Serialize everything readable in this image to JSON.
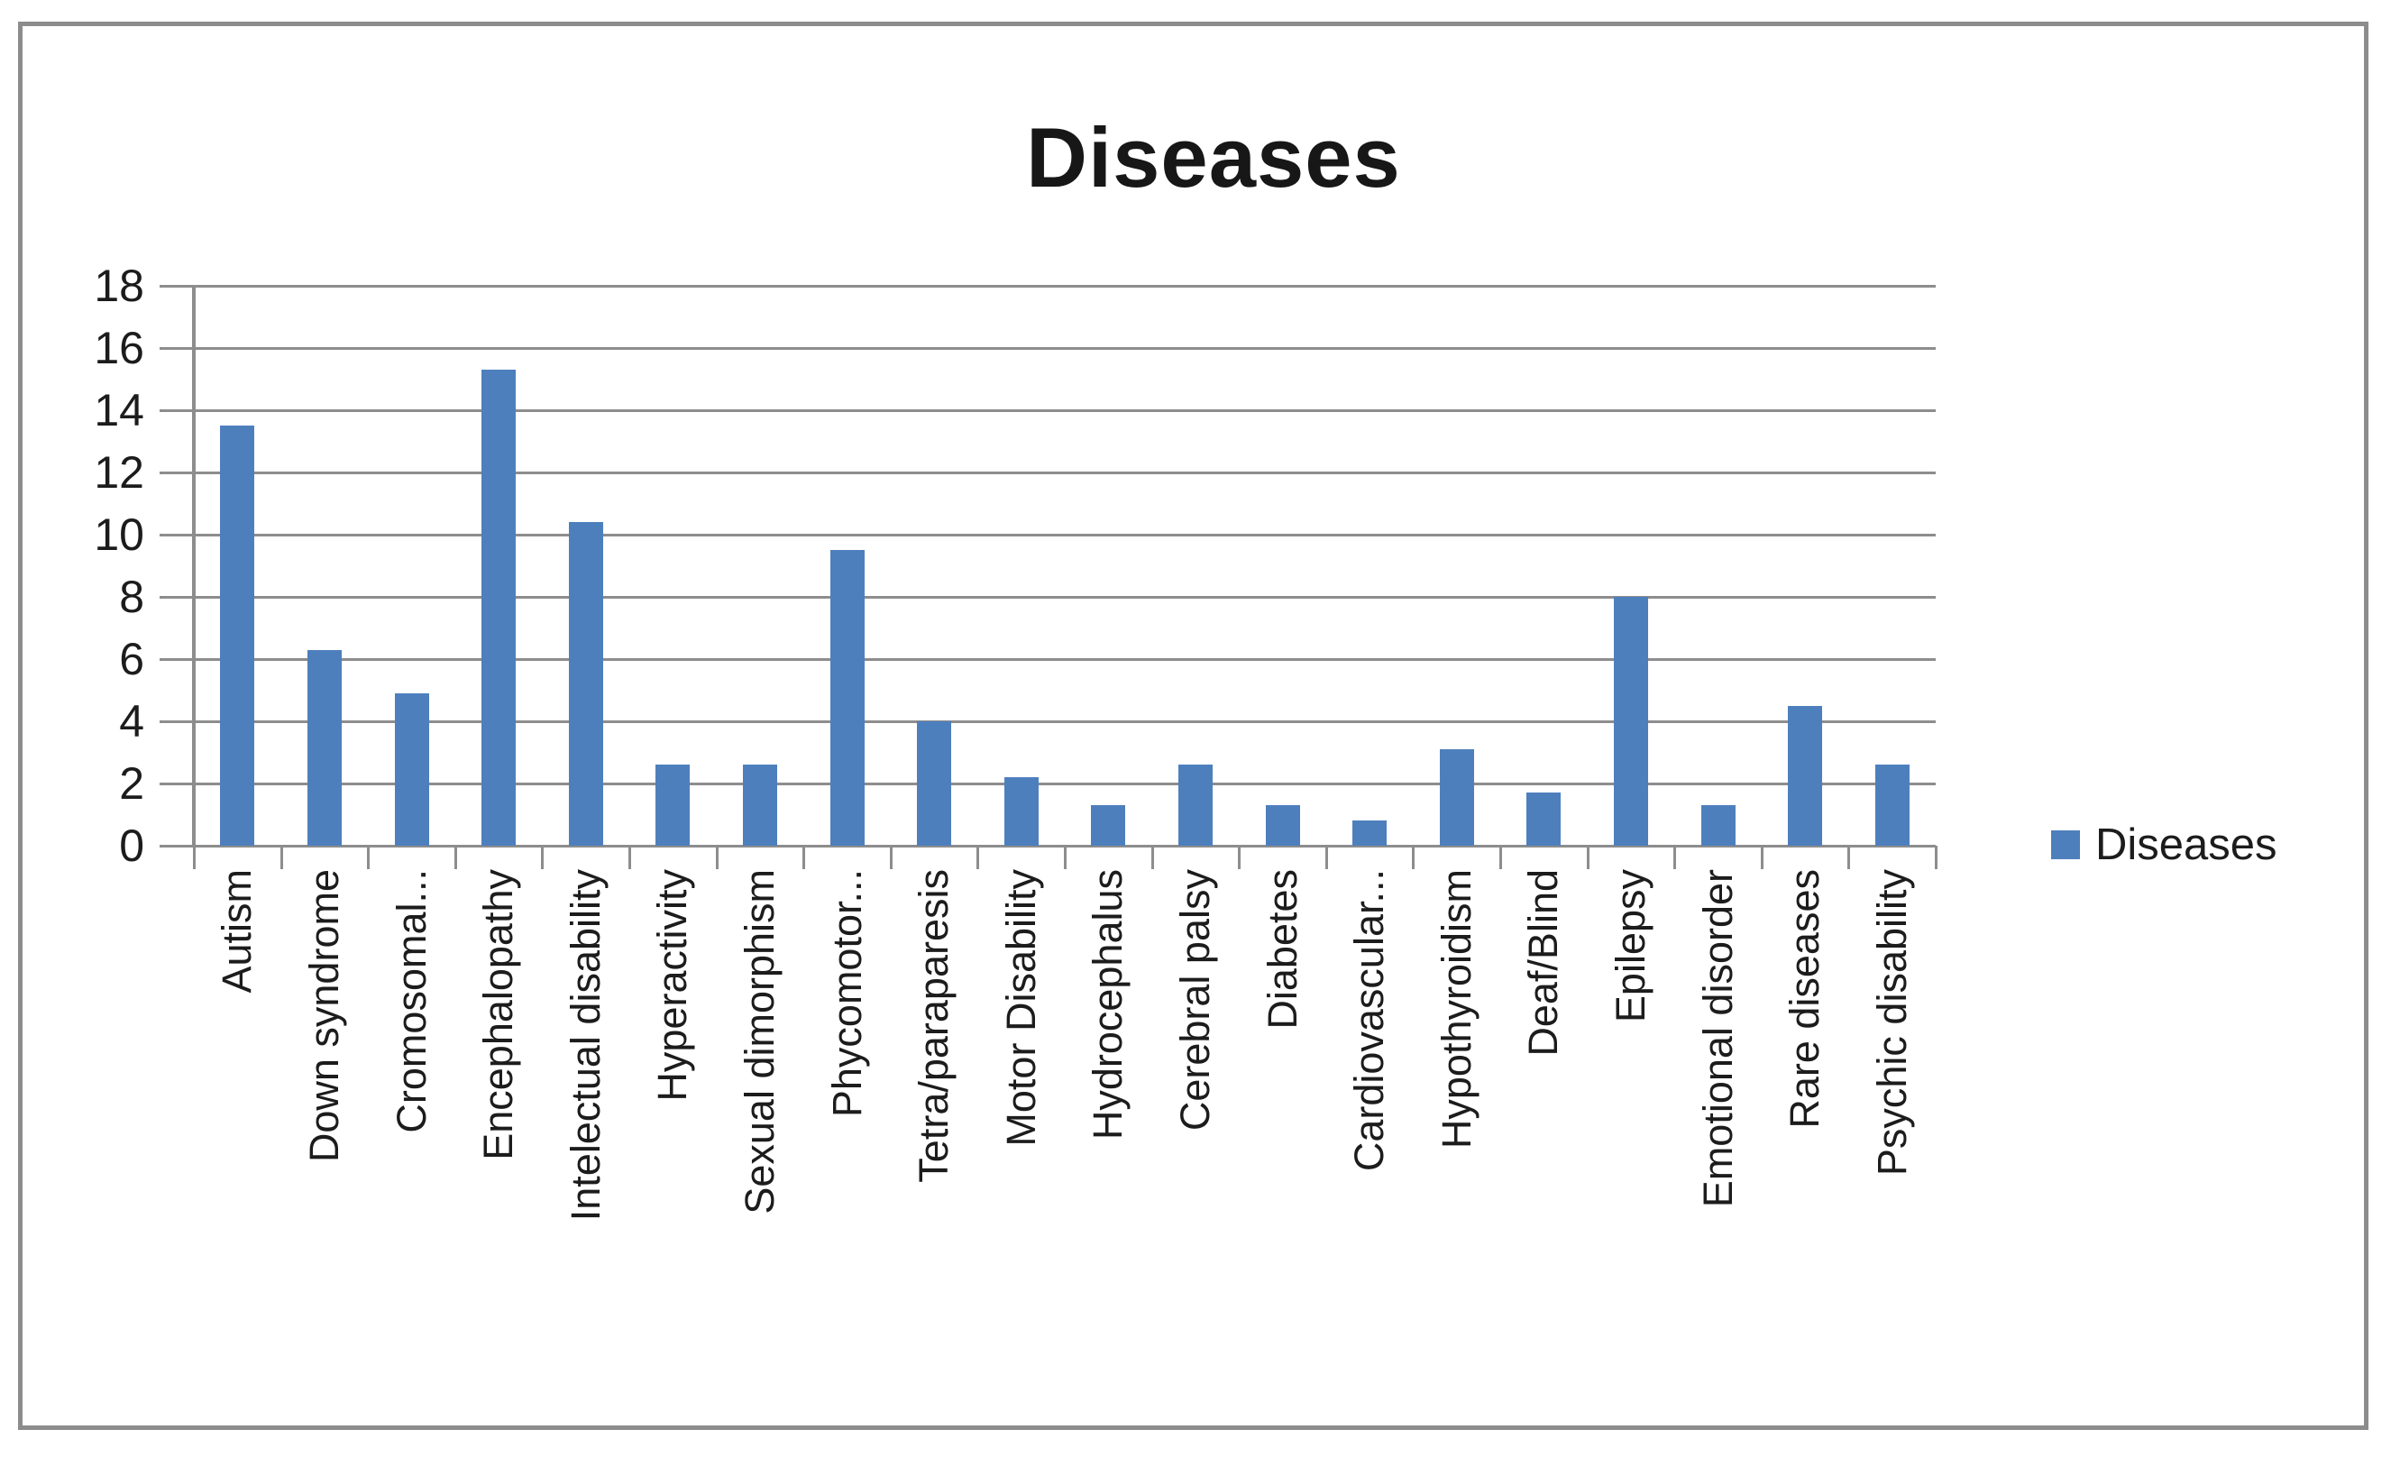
{
  "chart_data": {
    "type": "bar",
    "title": "Diseases",
    "categories": [
      "Autism",
      "Down syndrome",
      "Cromosomal...",
      "Encephalopathy",
      "Intelectual disability",
      "Hyperactivity",
      "Sexual dimorphism",
      "Phycomotor...",
      "Tetra/paraparesis",
      "Motor Disability",
      "Hydrocephalus",
      "Cerebral palsy",
      "Diabetes",
      "Cardiovascular...",
      "Hypothyroidism",
      "Deaf/Blind",
      "Epilepsy",
      "Emotional disorder",
      "Rare diseases",
      "Psychic disability"
    ],
    "series": [
      {
        "name": "Diseases",
        "values": [
          13.5,
          6.3,
          4.9,
          15.3,
          10.4,
          2.6,
          2.6,
          9.5,
          4.0,
          2.2,
          1.3,
          2.6,
          1.3,
          0.8,
          3.1,
          1.7,
          8.0,
          1.3,
          4.5,
          2.6
        ]
      }
    ],
    "xlabel": "",
    "ylabel": "",
    "ylim": [
      0,
      18
    ],
    "ytick_step": 2,
    "ytick_labels": [
      "18",
      "16",
      "14",
      "12",
      "10",
      "8",
      "6",
      "4",
      "2",
      "0"
    ],
    "grid": "horizontal-on",
    "legend": {
      "label": "Diseases",
      "position": "right"
    },
    "colors": {
      "bar": "#4e7fbd",
      "gridline": "#8d8d8d",
      "frame_border": "#8c8c8c",
      "text": "#1c1c1c",
      "background": "#ffffff"
    }
  }
}
